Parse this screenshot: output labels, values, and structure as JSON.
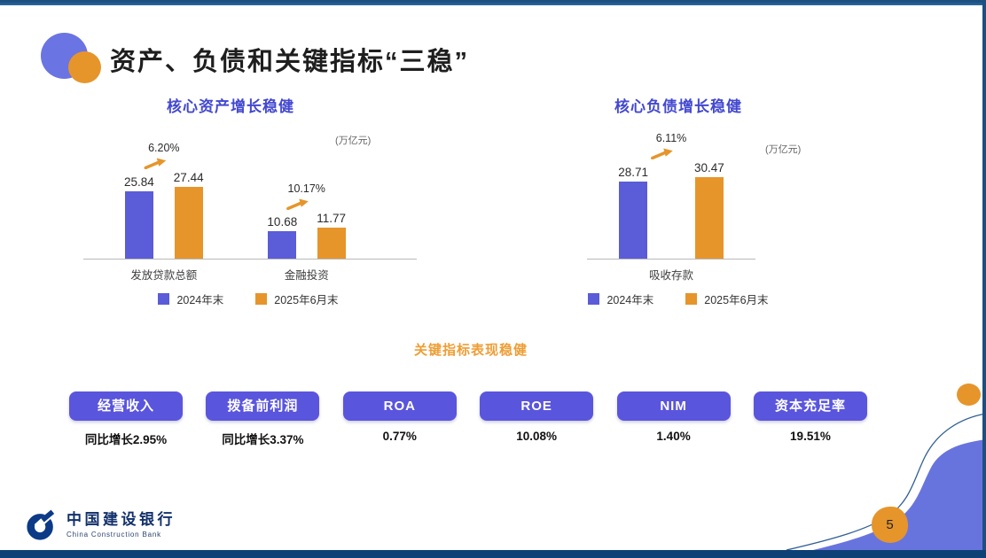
{
  "slide": {
    "title": "资产、负债和关键指标“三稳”",
    "page_number": "5"
  },
  "colors": {
    "bar_blue": "#5a5cd8",
    "bar_orange": "#e6952b",
    "button_blue": "#5a55dd",
    "chart_title_blue": "#4348d0",
    "section_title_orange": "#ee9d35",
    "wave_blue": "#6874de",
    "border_navy": "#0d4175"
  },
  "chart_data": [
    {
      "type": "bar",
      "title": "核心资产增长稳健",
      "unit_label": "(万亿元)",
      "categories": [
        "发放贷款总额",
        "金融投资"
      ],
      "series": [
        {
          "name": "2024年末",
          "values": [
            25.84,
            10.68
          ]
        },
        {
          "name": "2025年6月末",
          "values": [
            27.44,
            11.77
          ]
        }
      ],
      "growth_labels": [
        "6.20%",
        "10.17%"
      ],
      "ylim": [
        0,
        30
      ],
      "grid": false,
      "legend_position": "bottom"
    },
    {
      "type": "bar",
      "title": "核心负债增长稳健",
      "unit_label": "(万亿元)",
      "categories": [
        "吸收存款"
      ],
      "series": [
        {
          "name": "2024年末",
          "values": [
            28.71
          ]
        },
        {
          "name": "2025年6月末",
          "values": [
            30.47
          ]
        }
      ],
      "growth_labels": [
        "6.11%"
      ],
      "ylim": [
        0,
        33
      ],
      "grid": false,
      "legend_position": "bottom"
    }
  ],
  "metrics": {
    "section_title": "关键指标表现稳健",
    "items": [
      {
        "label": "经营收入",
        "value": "同比增长2.95%"
      },
      {
        "label": "拨备前利润",
        "value": "同比增长3.37%"
      },
      {
        "label": "ROA",
        "value": "0.77%"
      },
      {
        "label": "ROE",
        "value": "10.08%"
      },
      {
        "label": "NIM",
        "value": "1.40%"
      },
      {
        "label": "资本充足率",
        "value": "19.51%"
      }
    ]
  },
  "footer": {
    "bank_name_cn": "中国建设银行",
    "bank_name_en": "China Construction Bank"
  }
}
